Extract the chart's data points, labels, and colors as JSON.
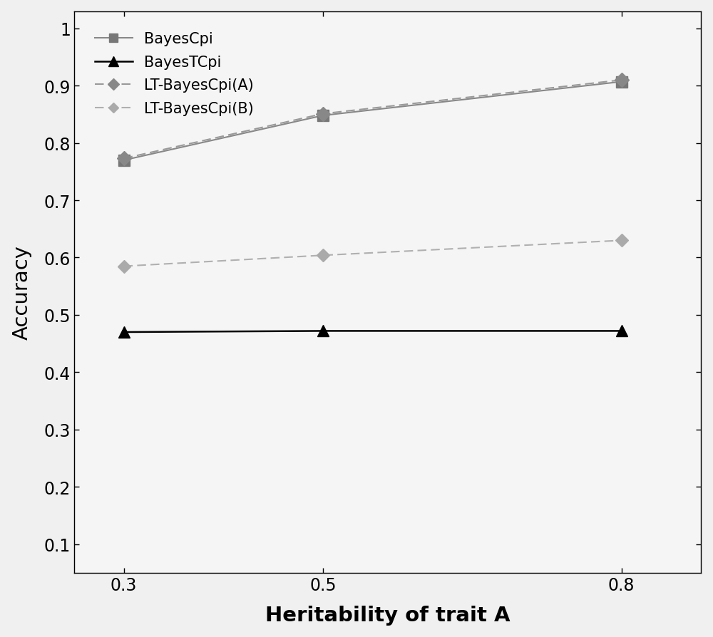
{
  "x": [
    0.3,
    0.5,
    0.8
  ],
  "BayesCpi": [
    0.77,
    0.848,
    0.907
  ],
  "BayesTCpi": [
    0.47,
    0.472,
    0.472
  ],
  "LT_BayesCpi_A": [
    0.773,
    0.851,
    0.91
  ],
  "LT_BayesCpi_B": [
    0.585,
    0.604,
    0.63
  ],
  "xlabel": "Heritability of trait A",
  "ylabel": "Accuracy",
  "yticks": [
    0.1,
    0.2,
    0.3,
    0.4,
    0.5,
    0.6,
    0.7,
    0.8,
    0.9,
    1.0
  ],
  "xticks": [
    0.3,
    0.5,
    0.8
  ],
  "ylim": [
    0.05,
    1.03
  ],
  "xlim": [
    0.25,
    0.88
  ],
  "legend_labels": [
    "BayesCpi",
    "BayesTCpi",
    "LT-BayesCpi(A)",
    "LT-BayesCpi(B)"
  ],
  "color_BayesCpi": "#888888",
  "color_BayesTCpi": "#000000",
  "color_LT_A": "#888888",
  "color_LT_B": "#aaaaaa",
  "bg_color": "#f0f0f0",
  "plot_bg": "#f5f5f5"
}
